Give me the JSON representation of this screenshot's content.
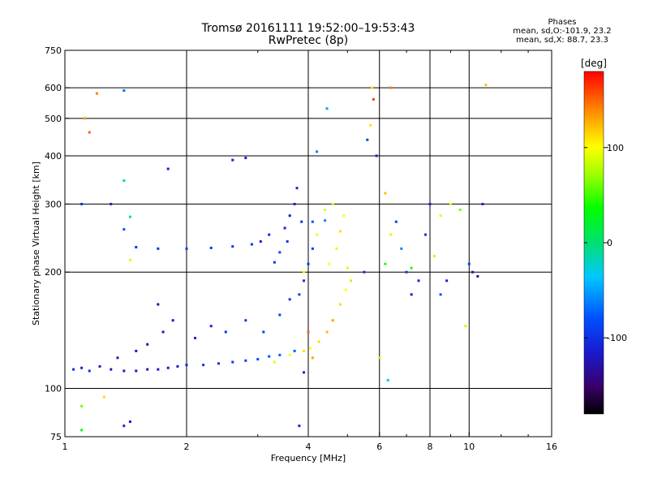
{
  "header": {
    "title_line1": "Tromsø 20161111 19:52:00–19:53:43",
    "title_line2": "RwPretec (8p)"
  },
  "phases_box": {
    "title": "Phases",
    "line_o": "mean, sd,O:-101.9, 23.2",
    "line_x": "mean, sd,X:  88.7, 23.3"
  },
  "colorbar": {
    "label": "[deg]",
    "range": [
      -180,
      180
    ],
    "ticks": [
      100,
      0,
      -100
    ],
    "tick_labels": [
      "100",
      "0",
      "-100"
    ]
  },
  "chart_data": {
    "type": "scatter",
    "title": "Tromsø 20161111 19:52:00–19:53:43",
    "subtitle": "RwPretec (8p)",
    "xlabel": "Frequency [MHz]",
    "ylabel": "Stationary phase Virtual Height [km]",
    "xscale": "log",
    "yscale": "log",
    "xlim": [
      1,
      16
    ],
    "ylim": [
      75,
      750
    ],
    "xticks": [
      1,
      2,
      4,
      6,
      8,
      10,
      16
    ],
    "xtick_labels": [
      "1",
      "2",
      "4",
      "6",
      "8",
      "10",
      "16"
    ],
    "xgrid": [
      2,
      4,
      6,
      8,
      10
    ],
    "yticks": [
      75,
      100,
      200,
      300,
      400,
      500,
      600,
      750
    ],
    "ytick_labels": [
      "75",
      "100",
      "200",
      "300",
      "400",
      "500",
      "600",
      "750"
    ],
    "ygrid": [
      100,
      200,
      300,
      400,
      500,
      600
    ],
    "grid": true,
    "color_variable": "phase [deg]",
    "series": [
      {
        "points": [
          [
            1.05,
            112,
            -100
          ],
          [
            1.1,
            113,
            -110
          ],
          [
            1.15,
            111,
            -105
          ],
          [
            1.22,
            114,
            -110
          ],
          [
            1.3,
            112,
            -120
          ],
          [
            1.4,
            111,
            -115
          ],
          [
            1.5,
            111,
            -120
          ],
          [
            1.6,
            112,
            -125
          ],
          [
            1.7,
            112,
            -120
          ],
          [
            1.8,
            113,
            -115
          ],
          [
            1.9,
            114,
            -110
          ],
          [
            2.0,
            115,
            -110
          ],
          [
            2.2,
            115,
            -100
          ],
          [
            2.4,
            116,
            -100
          ],
          [
            2.6,
            117,
            -95
          ],
          [
            2.8,
            118,
            -90
          ],
          [
            3.0,
            119,
            -85
          ],
          [
            3.2,
            121,
            -80
          ],
          [
            3.4,
            122,
            -75
          ],
          [
            3.7,
            125,
            -75
          ],
          [
            1.35,
            120,
            -120
          ],
          [
            1.5,
            125,
            -120
          ],
          [
            1.6,
            130,
            -130
          ],
          [
            1.75,
            140,
            -120
          ],
          [
            1.7,
            165,
            -130
          ],
          [
            1.85,
            150,
            -120
          ],
          [
            2.1,
            135,
            -110
          ],
          [
            2.3,
            145,
            -110
          ],
          [
            2.5,
            140,
            -100
          ],
          [
            2.8,
            150,
            -95
          ],
          [
            3.1,
            140,
            -90
          ],
          [
            3.4,
            155,
            -90
          ],
          [
            3.6,
            170,
            -95
          ],
          [
            3.8,
            175,
            -90
          ],
          [
            3.9,
            190,
            -100
          ],
          [
            4.0,
            210,
            -95
          ],
          [
            4.1,
            230,
            -95
          ],
          [
            3.5,
            260,
            -110
          ],
          [
            3.6,
            280,
            -115
          ],
          [
            3.7,
            300,
            -110
          ],
          [
            3.75,
            330,
            -110
          ],
          [
            3.85,
            270,
            -100
          ],
          [
            3.55,
            240,
            -100
          ],
          [
            1.5,
            232,
            -100
          ],
          [
            1.7,
            230,
            -100
          ],
          [
            2.0,
            230,
            -95
          ],
          [
            2.3,
            231,
            -95
          ],
          [
            2.6,
            233,
            -95
          ],
          [
            2.9,
            236,
            -100
          ],
          [
            3.05,
            240,
            -110
          ],
          [
            3.2,
            250,
            -105
          ],
          [
            3.4,
            225,
            -90
          ],
          [
            3.3,
            212,
            -95
          ],
          [
            4.1,
            270,
            -80
          ],
          [
            4.4,
            272,
            -60
          ],
          [
            3.9,
            110,
            -110
          ],
          [
            2.8,
            395,
            -110
          ],
          [
            2.6,
            390,
            -110
          ],
          [
            1.8,
            370,
            -110
          ],
          [
            3.3,
            117,
            90
          ],
          [
            3.6,
            122,
            100
          ],
          [
            3.9,
            125,
            110
          ],
          [
            4.05,
            127,
            100
          ],
          [
            4.25,
            132,
            110
          ],
          [
            4.45,
            140,
            120
          ],
          [
            4.6,
            150,
            130
          ],
          [
            4.8,
            165,
            110
          ],
          [
            4.95,
            180,
            100
          ],
          [
            5.1,
            190,
            80
          ],
          [
            5.0,
            205,
            90
          ],
          [
            4.5,
            210,
            100
          ],
          [
            4.7,
            230,
            90
          ],
          [
            4.8,
            255,
            110
          ],
          [
            4.9,
            280,
            100
          ],
          [
            4.6,
            300,
            90
          ],
          [
            4.4,
            290,
            90
          ],
          [
            4.2,
            250,
            95
          ],
          [
            3.9,
            200,
            95
          ],
          [
            4.0,
            140,
            150
          ],
          [
            4.1,
            120,
            130
          ],
          [
            5.5,
            200,
            -100
          ],
          [
            5.6,
            440,
            -90
          ],
          [
            5.7,
            480,
            110
          ],
          [
            5.8,
            560,
            160
          ],
          [
            5.75,
            600,
            110
          ],
          [
            6.2,
            210,
            40
          ],
          [
            6.4,
            250,
            90
          ],
          [
            6.6,
            270,
            -90
          ],
          [
            6.8,
            230,
            -60
          ],
          [
            7.0,
            200,
            -100
          ],
          [
            7.2,
            205,
            40
          ],
          [
            7.5,
            190,
            -110
          ],
          [
            7.8,
            250,
            -100
          ],
          [
            8.0,
            300,
            -110
          ],
          [
            8.2,
            220,
            80
          ],
          [
            8.5,
            280,
            90
          ],
          [
            8.8,
            190,
            -110
          ],
          [
            9.0,
            300,
            90
          ],
          [
            9.5,
            290,
            60
          ],
          [
            10.0,
            210,
            -90
          ],
          [
            10.5,
            195,
            -120
          ],
          [
            10.8,
            300,
            -110
          ],
          [
            11.0,
            610,
            120
          ],
          [
            9.8,
            145,
            80
          ],
          [
            10.2,
            200,
            -120
          ],
          [
            8.5,
            175,
            -80
          ],
          [
            7.2,
            175,
            -120
          ],
          [
            6.0,
            120,
            80
          ],
          [
            6.3,
            105,
            -30
          ],
          [
            6.2,
            320,
            120
          ],
          [
            6.4,
            600,
            140
          ],
          [
            4.2,
            410,
            -60
          ],
          [
            4.45,
            530,
            -50
          ],
          [
            1.1,
            300,
            -100
          ],
          [
            1.12,
            500,
            130
          ],
          [
            1.15,
            460,
            150
          ],
          [
            1.2,
            580,
            140
          ],
          [
            1.3,
            300,
            -110
          ],
          [
            1.4,
            590,
            -70
          ],
          [
            1.4,
            345,
            -10
          ],
          [
            1.45,
            278,
            -10
          ],
          [
            1.4,
            258,
            -80
          ],
          [
            1.45,
            215,
            90
          ],
          [
            1.1,
            90,
            60
          ],
          [
            1.1,
            78,
            30
          ],
          [
            1.25,
            95,
            110
          ],
          [
            1.4,
            80,
            -110
          ],
          [
            1.45,
            82,
            -120
          ],
          [
            3.8,
            80,
            -110
          ],
          [
            5.9,
            400,
            -110
          ]
        ]
      }
    ]
  }
}
